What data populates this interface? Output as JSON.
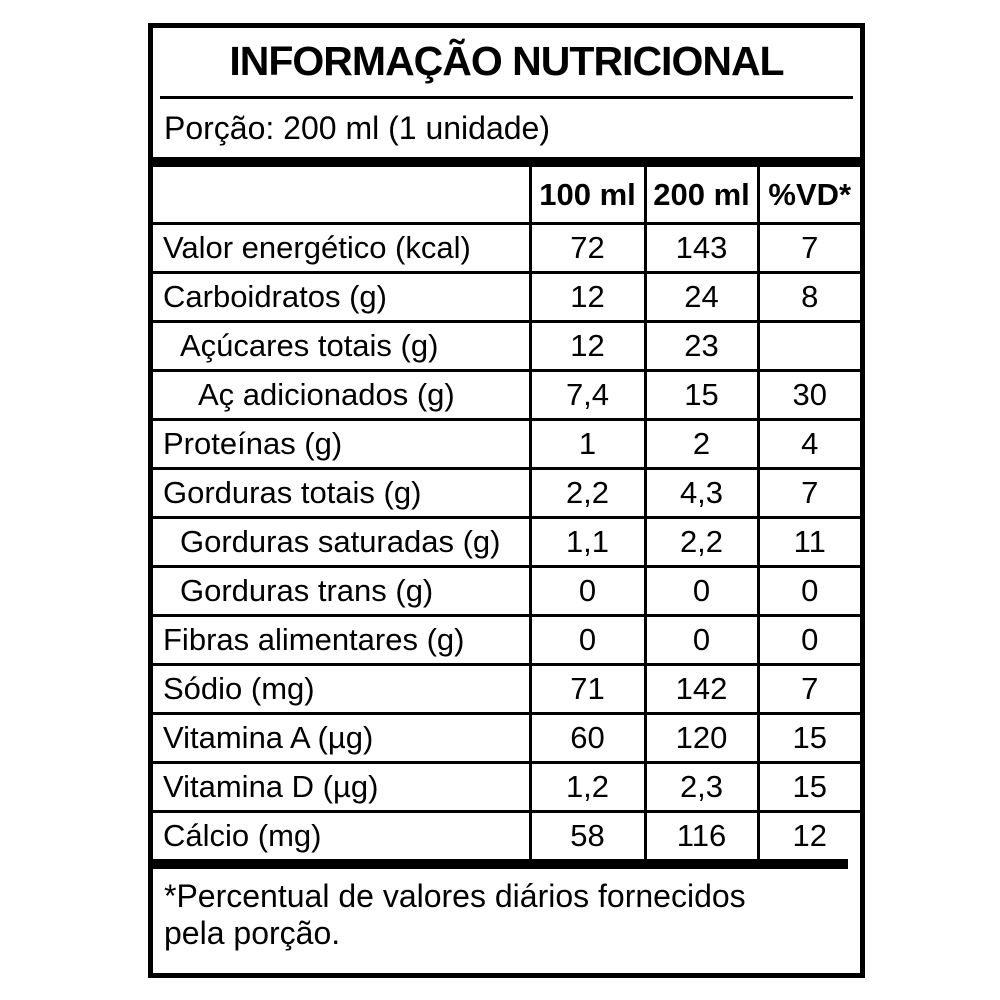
{
  "label": {
    "title": "INFORMAÇÃO NUTRICIONAL",
    "serving": "Porção: 200 ml (1 unidade)",
    "columns": [
      "100 ml",
      "200 ml",
      "%VD*"
    ],
    "rows": [
      {
        "name": "Valor energético (kcal)",
        "indent": 0,
        "per100": "72",
        "per200": "143",
        "vd": "7"
      },
      {
        "name": "Carboidratos (g)",
        "indent": 0,
        "per100": "12",
        "per200": "24",
        "vd": "8"
      },
      {
        "name": "Açúcares totais (g)",
        "indent": 1,
        "per100": "12",
        "per200": "23",
        "vd": ""
      },
      {
        "name": "Aç adicionados (g)",
        "indent": 2,
        "per100": "7,4",
        "per200": "15",
        "vd": "30"
      },
      {
        "name": "Proteínas (g)",
        "indent": 0,
        "per100": "1",
        "per200": "2",
        "vd": "4"
      },
      {
        "name": "Gorduras totais (g)",
        "indent": 0,
        "per100": "2,2",
        "per200": "4,3",
        "vd": "7"
      },
      {
        "name": "Gorduras saturadas (g)",
        "indent": 1,
        "per100": "1,1",
        "per200": "2,2",
        "vd": "11"
      },
      {
        "name": "Gorduras trans (g)",
        "indent": 1,
        "per100": "0",
        "per200": "0",
        "vd": "0"
      },
      {
        "name": "Fibras alimentares (g)",
        "indent": 0,
        "per100": "0",
        "per200": "0",
        "vd": "0"
      },
      {
        "name": "Sódio (mg)",
        "indent": 0,
        "per100": "71",
        "per200": "142",
        "vd": "7"
      },
      {
        "name": "Vitamina A (µg)",
        "indent": 0,
        "per100": "60",
        "per200": "120",
        "vd": "15"
      },
      {
        "name": "Vitamina D (µg)",
        "indent": 0,
        "per100": "1,2",
        "per200": "2,3",
        "vd": "15"
      },
      {
        "name": "Cálcio (mg)",
        "indent": 0,
        "per100": "58",
        "per200": "116",
        "vd": "12"
      }
    ],
    "footnote_line1": "*Percentual de valores diários fornecidos",
    "footnote_line2": "pela porção."
  },
  "colors": {
    "ink": "#000000",
    "background": "#ffffff"
  }
}
